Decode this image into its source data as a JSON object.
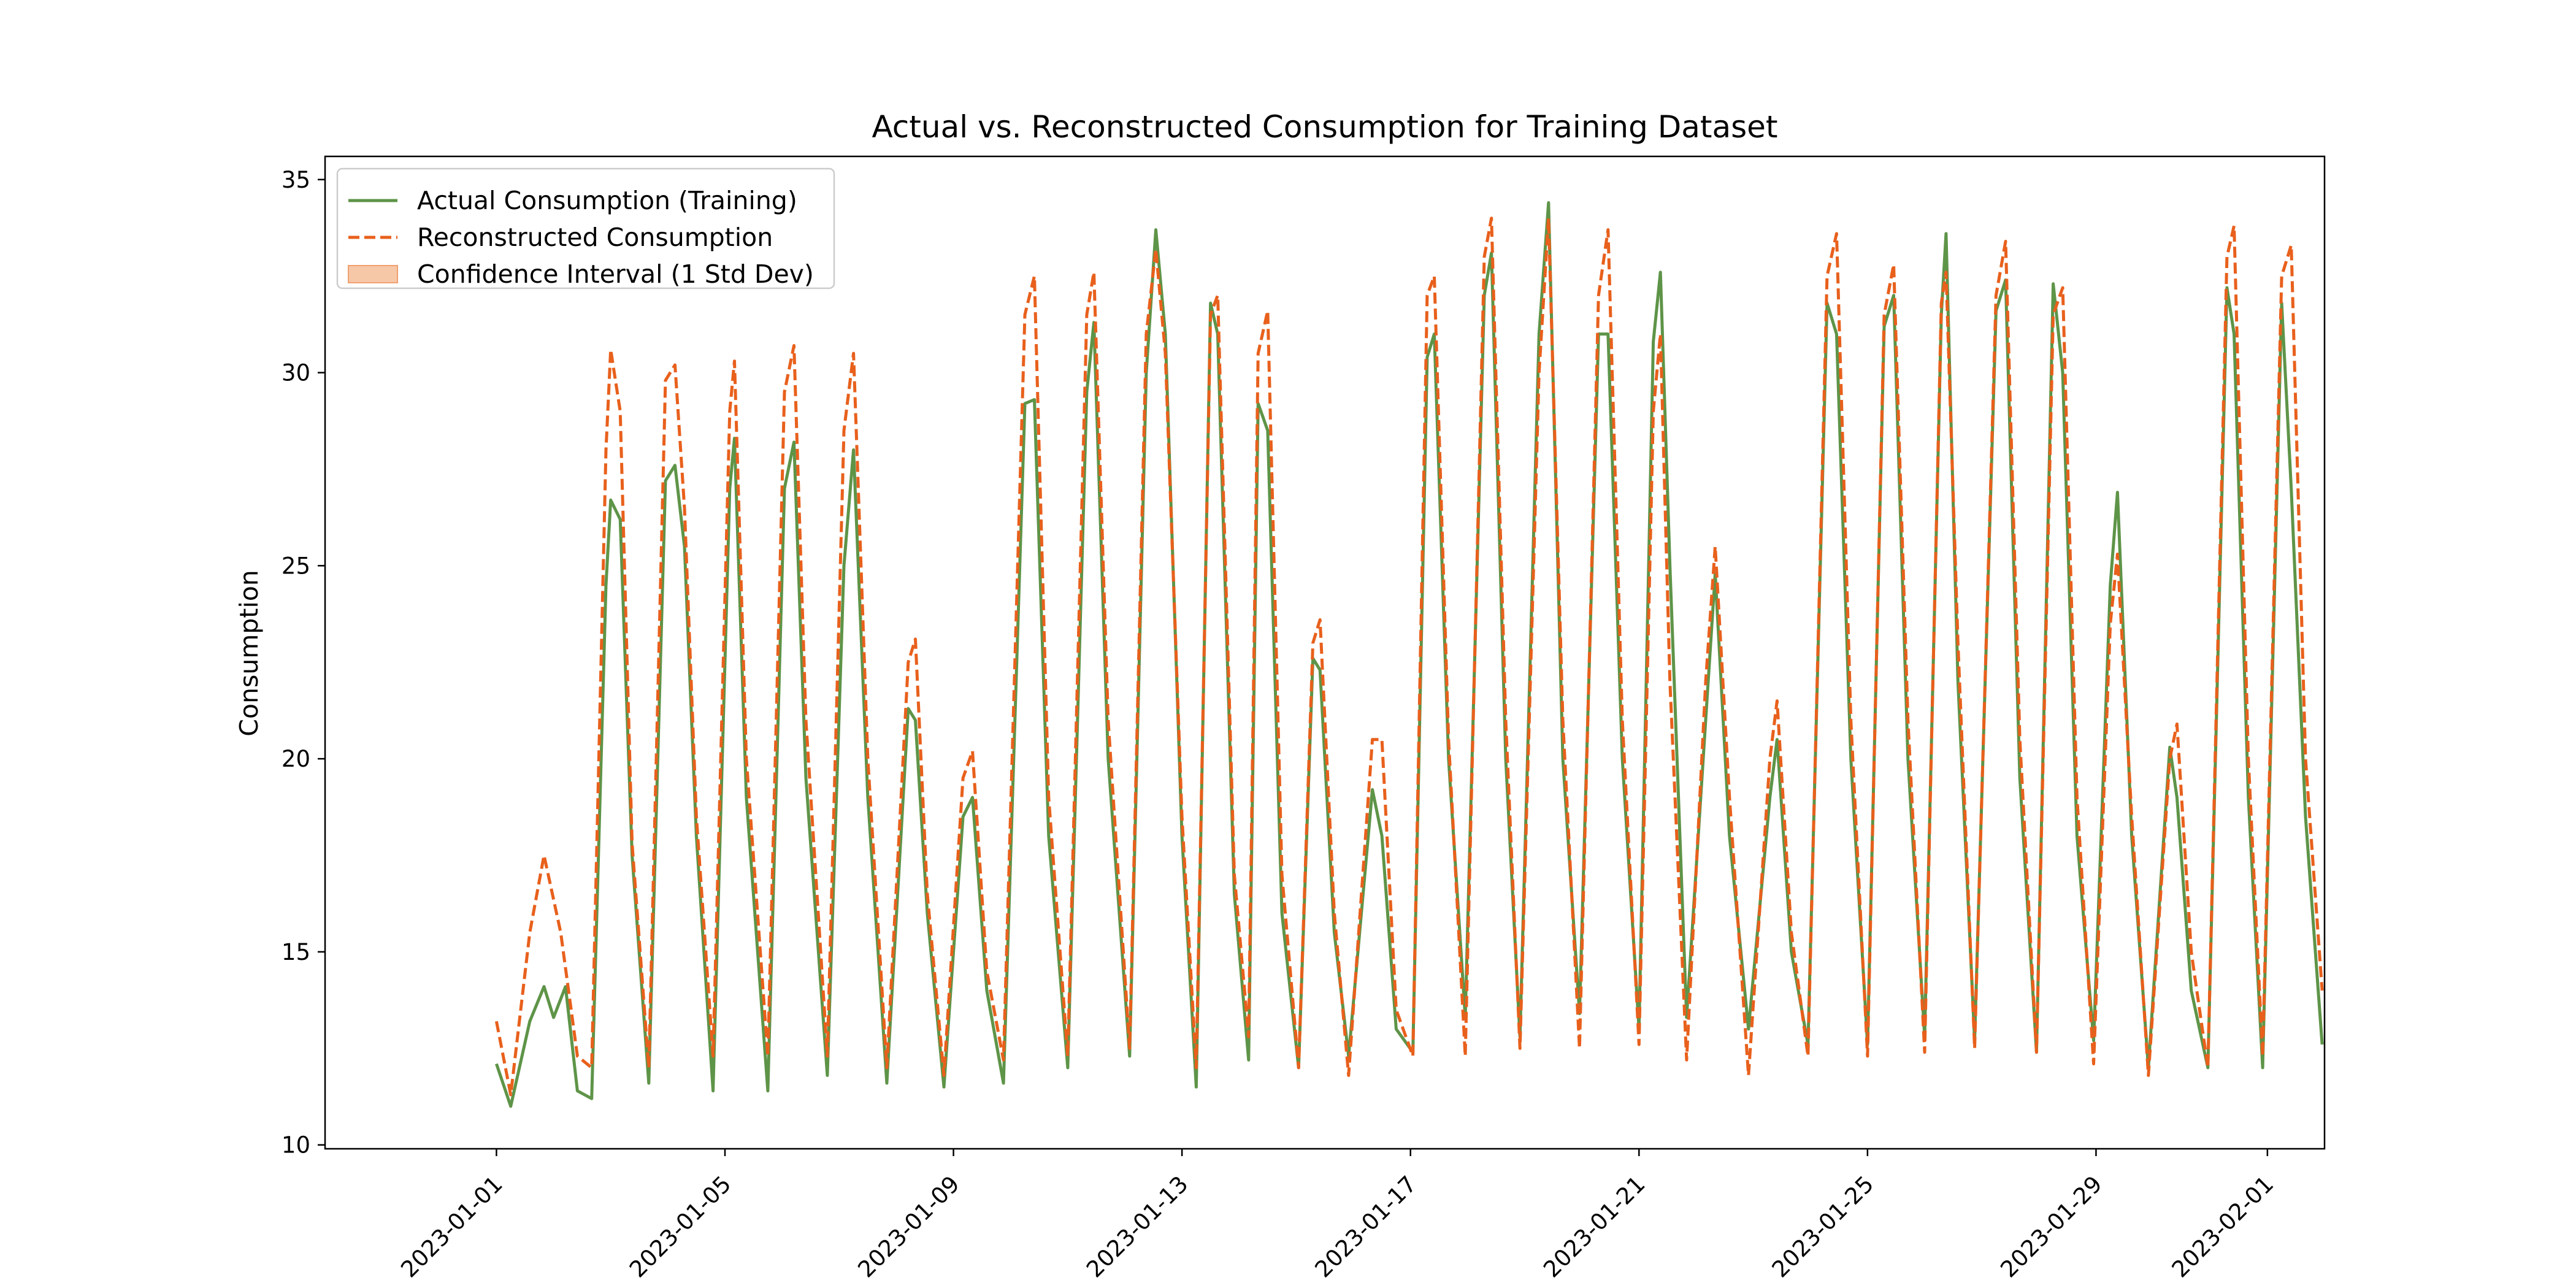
{
  "chart_data": {
    "type": "line",
    "title": "Actual vs. Reconstructed Consumption for Training Dataset",
    "xlabel": "",
    "ylabel": "Consumption",
    "xlim": [
      "2022-12-29",
      "2023-02-02"
    ],
    "ylim": [
      9.9,
      35.6
    ],
    "y_ticks": [
      10,
      15,
      20,
      25,
      30,
      35
    ],
    "x_ticks": [
      "2023-01-01",
      "2023-01-05",
      "2023-01-09",
      "2023-01-13",
      "2023-01-17",
      "2023-01-21",
      "2023-01-25",
      "2023-01-29",
      "2023-02-01"
    ],
    "grid": false,
    "legend_position": "top-left",
    "series": [
      {
        "name": "Actual Consumption (Training)",
        "color": "#5e9448",
        "style": "solid",
        "points": [
          [
            "2023-01-01",
            12.1
          ],
          [
            "2023-01-01T06",
            11.0
          ],
          [
            "2023-01-01T14",
            13.2
          ],
          [
            "2023-01-01T20",
            14.1
          ],
          [
            "2023-01-02T00",
            13.3
          ],
          [
            "2023-01-02T05",
            14.1
          ],
          [
            "2023-01-02T10",
            11.4
          ],
          [
            "2023-01-02T16",
            11.2
          ],
          [
            "2023-01-02T22",
            24.5
          ],
          [
            "2023-01-03",
            26.7
          ],
          [
            "2023-01-03T04",
            26.2
          ],
          [
            "2023-01-03T09",
            17.5
          ],
          [
            "2023-01-03T16",
            11.6
          ],
          [
            "2023-01-03T23",
            27.2
          ],
          [
            "2023-01-04T03",
            27.6
          ],
          [
            "2023-01-04T07",
            25.5
          ],
          [
            "2023-01-04T12",
            18.0
          ],
          [
            "2023-01-04T19",
            11.4
          ],
          [
            "2023-01-05T02",
            27.0
          ],
          [
            "2023-01-05T04",
            28.3
          ],
          [
            "2023-01-05T09",
            19.0
          ],
          [
            "2023-01-05T18",
            11.4
          ],
          [
            "2023-01-06T01",
            27.0
          ],
          [
            "2023-01-06T05",
            28.2
          ],
          [
            "2023-01-06T10",
            19.5
          ],
          [
            "2023-01-06T19",
            11.8
          ],
          [
            "2023-01-07T02",
            25.0
          ],
          [
            "2023-01-07T06",
            28.0
          ],
          [
            "2023-01-07T12",
            19.0
          ],
          [
            "2023-01-07T20",
            11.6
          ],
          [
            "2023-01-08T05",
            21.3
          ],
          [
            "2023-01-08T08",
            21.0
          ],
          [
            "2023-01-08T13",
            16.0
          ],
          [
            "2023-01-08T20",
            11.5
          ],
          [
            "2023-01-09T04",
            18.5
          ],
          [
            "2023-01-09T08",
            19.0
          ],
          [
            "2023-01-09T14",
            14.0
          ],
          [
            "2023-01-09T21",
            11.6
          ],
          [
            "2023-01-10T06",
            29.2
          ],
          [
            "2023-01-10T10",
            29.3
          ],
          [
            "2023-01-10T16",
            18.0
          ],
          [
            "2023-01-11T00",
            12.0
          ],
          [
            "2023-01-11T08",
            29.5
          ],
          [
            "2023-01-11T11",
            31.3
          ],
          [
            "2023-01-11T17",
            20.0
          ],
          [
            "2023-01-12T02",
            12.3
          ],
          [
            "2023-01-12T09",
            30.0
          ],
          [
            "2023-01-12T13",
            33.7
          ],
          [
            "2023-01-12T17",
            31.0
          ],
          [
            "2023-01-13T00",
            18.0
          ],
          [
            "2023-01-13T06",
            11.5
          ],
          [
            "2023-01-13T12",
            31.8
          ],
          [
            "2023-01-13T15",
            31.0
          ],
          [
            "2023-01-13T22",
            16.5
          ],
          [
            "2023-01-14T04",
            12.2
          ],
          [
            "2023-01-14T08",
            29.2
          ],
          [
            "2023-01-14T12",
            28.5
          ],
          [
            "2023-01-14T18",
            16.0
          ],
          [
            "2023-01-15T01",
            12.0
          ],
          [
            "2023-01-15T07",
            22.6
          ],
          [
            "2023-01-15T10",
            22.3
          ],
          [
            "2023-01-15T16",
            15.5
          ],
          [
            "2023-01-15T22",
            12.3
          ],
          [
            "2023-01-16T08",
            19.2
          ],
          [
            "2023-01-16T12",
            18.0
          ],
          [
            "2023-01-16T18",
            13.0
          ],
          [
            "2023-01-17T01",
            12.4
          ],
          [
            "2023-01-17T07",
            30.4
          ],
          [
            "2023-01-17T10",
            31.0
          ],
          [
            "2023-01-17T16",
            20.0
          ],
          [
            "2023-01-17T23",
            13.3
          ],
          [
            "2023-01-18T07",
            32.0
          ],
          [
            "2023-01-18T10",
            33.1
          ],
          [
            "2023-01-18T16",
            20.0
          ],
          [
            "2023-01-18T22",
            12.8
          ],
          [
            "2023-01-19T06",
            31.0
          ],
          [
            "2023-01-19T10",
            34.4
          ],
          [
            "2023-01-19T16",
            20.0
          ],
          [
            "2023-01-19T23",
            13.4
          ],
          [
            "2023-01-20T07",
            31.0
          ],
          [
            "2023-01-20T11",
            31.0
          ],
          [
            "2023-01-20T17",
            20.0
          ],
          [
            "2023-01-21T00",
            13.0
          ],
          [
            "2023-01-21T06",
            30.8
          ],
          [
            "2023-01-21T09",
            32.6
          ],
          [
            "2023-01-21T13",
            25.0
          ],
          [
            "2023-01-21T20",
            13.3
          ],
          [
            "2023-01-22T04",
            21.0
          ],
          [
            "2023-01-22T08",
            24.8
          ],
          [
            "2023-01-22T14",
            18.0
          ],
          [
            "2023-01-22T22",
            13.0
          ],
          [
            "2023-01-23T07",
            19.0
          ],
          [
            "2023-01-23T10",
            20.5
          ],
          [
            "2023-01-23T16",
            15.0
          ],
          [
            "2023-01-23T23",
            12.6
          ],
          [
            "2023-01-24T07",
            31.8
          ],
          [
            "2023-01-24T11",
            31.0
          ],
          [
            "2023-01-24T17",
            20.0
          ],
          [
            "2023-01-25T00",
            12.6
          ],
          [
            "2023-01-25T07",
            31.2
          ],
          [
            "2023-01-25T11",
            32.0
          ],
          [
            "2023-01-25T17",
            20.0
          ],
          [
            "2023-01-26T00",
            12.8
          ],
          [
            "2023-01-26T07",
            31.5
          ],
          [
            "2023-01-26T09",
            33.6
          ],
          [
            "2023-01-26T14",
            22.0
          ],
          [
            "2023-01-26T21",
            12.7
          ],
          [
            "2023-01-27T06",
            31.6
          ],
          [
            "2023-01-27T10",
            32.4
          ],
          [
            "2023-01-27T16",
            19.5
          ],
          [
            "2023-01-27T23",
            12.4
          ],
          [
            "2023-01-28T06",
            32.3
          ],
          [
            "2023-01-28T10",
            30.0
          ],
          [
            "2023-01-28T16",
            18.0
          ],
          [
            "2023-01-28T23",
            12.7
          ],
          [
            "2023-01-29T06",
            24.5
          ],
          [
            "2023-01-29T09",
            26.9
          ],
          [
            "2023-01-29T15",
            18.0
          ],
          [
            "2023-01-29T22",
            12.0
          ],
          [
            "2023-01-30T07",
            20.3
          ],
          [
            "2023-01-30T10",
            19.0
          ],
          [
            "2023-01-30T16",
            14.0
          ],
          [
            "2023-01-30T23",
            12.0
          ],
          [
            "2023-01-31T07",
            32.2
          ],
          [
            "2023-01-31T10",
            31.0
          ],
          [
            "2023-01-31T16",
            19.0
          ],
          [
            "2023-01-31T22",
            12.0
          ],
          [
            "2023-02-01T06",
            31.8
          ],
          [
            "2023-02-01T10",
            27.0
          ],
          [
            "2023-02-01T16",
            18.5
          ],
          [
            "2023-02-01T23",
            12.6
          ]
        ]
      },
      {
        "name": "Reconstructed Consumption",
        "color": "#e8601c",
        "style": "dashed",
        "points": [
          [
            "2023-01-01",
            13.2
          ],
          [
            "2023-01-01T06",
            11.3
          ],
          [
            "2023-01-01T14",
            15.5
          ],
          [
            "2023-01-01T20",
            17.5
          ],
          [
            "2023-01-02T03",
            15.5
          ],
          [
            "2023-01-02T10",
            12.3
          ],
          [
            "2023-01-02T16",
            12.0
          ],
          [
            "2023-01-02T22",
            28.0
          ],
          [
            "2023-01-03",
            30.6
          ],
          [
            "2023-01-03T04",
            29.0
          ],
          [
            "2023-01-03T09",
            17.8
          ],
          [
            "2023-01-03T16",
            12.0
          ],
          [
            "2023-01-03T23",
            29.8
          ],
          [
            "2023-01-04T03",
            30.2
          ],
          [
            "2023-01-04T07",
            26.5
          ],
          [
            "2023-01-04T12",
            18.5
          ],
          [
            "2023-01-04T19",
            12.3
          ],
          [
            "2023-01-05T02",
            29.0
          ],
          [
            "2023-01-05T04",
            30.3
          ],
          [
            "2023-01-05T09",
            20.0
          ],
          [
            "2023-01-05T18",
            12.3
          ],
          [
            "2023-01-06T01",
            29.5
          ],
          [
            "2023-01-06T05",
            30.7
          ],
          [
            "2023-01-06T10",
            21.0
          ],
          [
            "2023-01-06T19",
            12.3
          ],
          [
            "2023-01-07T02",
            28.5
          ],
          [
            "2023-01-07T06",
            30.5
          ],
          [
            "2023-01-07T12",
            20.0
          ],
          [
            "2023-01-07T20",
            12.0
          ],
          [
            "2023-01-08T05",
            22.5
          ],
          [
            "2023-01-08T08",
            23.1
          ],
          [
            "2023-01-08T13",
            16.5
          ],
          [
            "2023-01-08T20",
            11.8
          ],
          [
            "2023-01-09T04",
            19.5
          ],
          [
            "2023-01-09T08",
            20.2
          ],
          [
            "2023-01-09T14",
            14.5
          ],
          [
            "2023-01-09T21",
            12.2
          ],
          [
            "2023-01-10T06",
            31.5
          ],
          [
            "2023-01-10T10",
            32.5
          ],
          [
            "2023-01-10T16",
            19.0
          ],
          [
            "2023-01-11T00",
            12.3
          ],
          [
            "2023-01-11T08",
            31.5
          ],
          [
            "2023-01-11T11",
            32.6
          ],
          [
            "2023-01-11T17",
            21.0
          ],
          [
            "2023-01-12T02",
            12.5
          ],
          [
            "2023-01-12T09",
            31.0
          ],
          [
            "2023-01-12T13",
            33.2
          ],
          [
            "2023-01-12T17",
            30.5
          ],
          [
            "2023-01-13T00",
            18.5
          ],
          [
            "2023-01-13T06",
            12.0
          ],
          [
            "2023-01-13T12",
            31.5
          ],
          [
            "2023-01-13T15",
            32.0
          ],
          [
            "2023-01-13T22",
            17.0
          ],
          [
            "2023-01-14T04",
            12.8
          ],
          [
            "2023-01-14T08",
            30.5
          ],
          [
            "2023-01-14T12",
            31.6
          ],
          [
            "2023-01-14T18",
            17.0
          ],
          [
            "2023-01-15T01",
            12.0
          ],
          [
            "2023-01-15T07",
            23.0
          ],
          [
            "2023-01-15T10",
            23.6
          ],
          [
            "2023-01-15T16",
            16.0
          ],
          [
            "2023-01-15T22",
            11.8
          ],
          [
            "2023-01-16T08",
            20.5
          ],
          [
            "2023-01-16T12",
            20.5
          ],
          [
            "2023-01-16T18",
            13.5
          ],
          [
            "2023-01-17T01",
            12.3
          ],
          [
            "2023-01-17T07",
            32.0
          ],
          [
            "2023-01-17T10",
            32.5
          ],
          [
            "2023-01-17T16",
            20.5
          ],
          [
            "2023-01-17T23",
            12.3
          ],
          [
            "2023-01-18T07",
            33.0
          ],
          [
            "2023-01-18T10",
            34.0
          ],
          [
            "2023-01-18T16",
            21.0
          ],
          [
            "2023-01-18T22",
            12.5
          ],
          [
            "2023-01-19T06",
            30.0
          ],
          [
            "2023-01-19T10",
            34.0
          ],
          [
            "2023-01-19T16",
            21.0
          ],
          [
            "2023-01-19T23",
            12.5
          ],
          [
            "2023-01-20T07",
            32.0
          ],
          [
            "2023-01-20T11",
            33.7
          ],
          [
            "2023-01-20T17",
            21.0
          ],
          [
            "2023-01-21T00",
            12.6
          ],
          [
            "2023-01-21T06",
            29.0
          ],
          [
            "2023-01-21T09",
            31.0
          ],
          [
            "2023-01-21T13",
            22.0
          ],
          [
            "2023-01-21T20",
            12.2
          ],
          [
            "2023-01-22T04",
            22.0
          ],
          [
            "2023-01-22T08",
            25.5
          ],
          [
            "2023-01-22T14",
            19.0
          ],
          [
            "2023-01-22T22",
            11.8
          ],
          [
            "2023-01-23T07",
            20.0
          ],
          [
            "2023-01-23T10",
            21.5
          ],
          [
            "2023-01-23T16",
            15.5
          ],
          [
            "2023-01-23T23",
            12.3
          ],
          [
            "2023-01-24T07",
            32.5
          ],
          [
            "2023-01-24T11",
            33.6
          ],
          [
            "2023-01-24T17",
            21.0
          ],
          [
            "2023-01-25T00",
            12.3
          ],
          [
            "2023-01-25T07",
            31.5
          ],
          [
            "2023-01-25T11",
            32.8
          ],
          [
            "2023-01-25T17",
            21.0
          ],
          [
            "2023-01-26T00",
            12.4
          ],
          [
            "2023-01-26T07",
            31.8
          ],
          [
            "2023-01-26T09",
            32.6
          ],
          [
            "2023-01-26T14",
            23.0
          ],
          [
            "2023-01-26T21",
            12.5
          ],
          [
            "2023-01-27T06",
            32.0
          ],
          [
            "2023-01-27T10",
            33.4
          ],
          [
            "2023-01-27T16",
            20.5
          ],
          [
            "2023-01-27T23",
            12.4
          ],
          [
            "2023-01-28T06",
            31.5
          ],
          [
            "2023-01-28T10",
            32.2
          ],
          [
            "2023-01-28T16",
            19.0
          ],
          [
            "2023-01-28T23",
            12.1
          ],
          [
            "2023-01-29T06",
            23.5
          ],
          [
            "2023-01-29T09",
            25.3
          ],
          [
            "2023-01-29T15",
            18.5
          ],
          [
            "2023-01-29T22",
            11.8
          ],
          [
            "2023-01-30T07",
            20.0
          ],
          [
            "2023-01-30T10",
            20.9
          ],
          [
            "2023-01-30T16",
            15.0
          ],
          [
            "2023-01-30T23",
            12.0
          ],
          [
            "2023-01-31T07",
            33.0
          ],
          [
            "2023-01-31T10",
            33.8
          ],
          [
            "2023-01-31T16",
            20.0
          ],
          [
            "2023-01-31T22",
            12.3
          ],
          [
            "2023-02-01T06",
            32.5
          ],
          [
            "2023-02-01T10",
            33.3
          ],
          [
            "2023-02-01T16",
            20.0
          ],
          [
            "2023-02-01T23",
            14.0
          ]
        ]
      }
    ],
    "legend": [
      {
        "label": "Actual Consumption (Training)",
        "kind": "line",
        "color": "#5e9448"
      },
      {
        "label": "Reconstructed Consumption",
        "kind": "dashed",
        "color": "#e8601c"
      },
      {
        "label": "Confidence Interval (1 Std Dev)",
        "kind": "patch",
        "color": "#f7c8a8"
      }
    ]
  }
}
